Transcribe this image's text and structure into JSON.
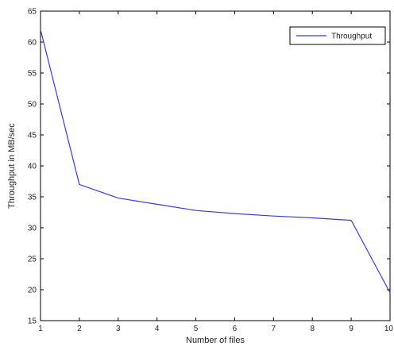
{
  "chart_data": {
    "type": "line",
    "xlabel": "Number of files",
    "ylabel": "Throughput in MB/sec",
    "xlim": [
      1,
      10
    ],
    "ylim": [
      15,
      65
    ],
    "xticks": [
      "1",
      "2",
      "3",
      "4",
      "5",
      "6",
      "7",
      "8",
      "9",
      "10"
    ],
    "yticks": [
      "15",
      "20",
      "25",
      "30",
      "35",
      "40",
      "45",
      "50",
      "55",
      "60",
      "65"
    ],
    "grid": false,
    "legend_position": "top-right",
    "series": [
      {
        "name": "Throughput",
        "color": "#3b3bdc",
        "x": [
          1,
          2,
          3,
          4,
          5,
          6,
          7,
          8,
          9,
          10
        ],
        "y": [
          62,
          37,
          34.8,
          33.8,
          32.8,
          32.3,
          31.9,
          31.6,
          31.2,
          19.5
        ]
      }
    ]
  }
}
